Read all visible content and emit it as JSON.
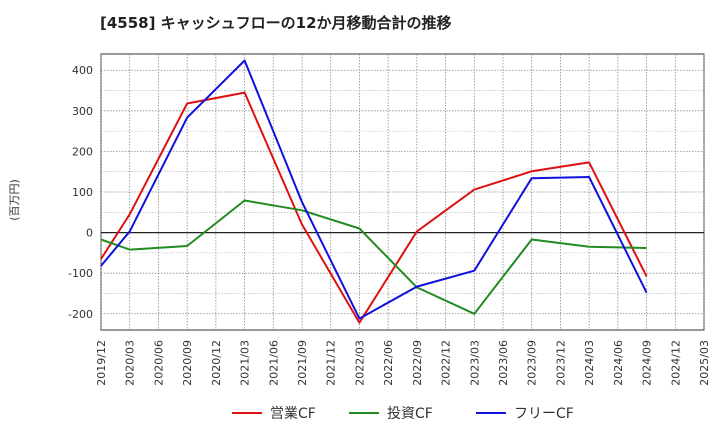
{
  "chart_data": {
    "type": "line",
    "title": "[4558]  キャッシュフローの12か月移動合計の推移",
    "ylabel": "(百万円)",
    "xlabel": "",
    "ylim": [
      -240,
      440
    ],
    "yticks": [
      -200,
      -100,
      0,
      100,
      200,
      300,
      400
    ],
    "xticks": [
      "2019/12",
      "2020/03",
      "2020/06",
      "2020/09",
      "2020/12",
      "2021/03",
      "2021/06",
      "2021/09",
      "2021/12",
      "2022/03",
      "2022/06",
      "2022/09",
      "2022/12",
      "2023/03",
      "2023/06",
      "2023/09",
      "2023/12",
      "2024/03",
      "2024/06",
      "2024/09",
      "2024/12",
      "2025/03"
    ],
    "grid": true,
    "legend_position": "bottom",
    "series": [
      {
        "name": "営業CF",
        "color": "#dd1111",
        "points": [
          [
            "2019/12",
            -65
          ],
          [
            "2020/03",
            45
          ],
          [
            "2020/09",
            318
          ],
          [
            "2021/03",
            345
          ],
          [
            "2021/09",
            20
          ],
          [
            "2022/03",
            -222
          ],
          [
            "2022/09",
            3
          ],
          [
            "2023/03",
            106
          ],
          [
            "2023/09",
            151
          ],
          [
            "2024/03",
            173
          ],
          [
            "2024/09",
            -108
          ]
        ]
      },
      {
        "name": "投資CF",
        "color": "#228b22",
        "points": [
          [
            "2019/12",
            -17
          ],
          [
            "2020/03",
            -42
          ],
          [
            "2020/09",
            -33
          ],
          [
            "2021/03",
            79
          ],
          [
            "2021/09",
            55
          ],
          [
            "2022/03",
            10
          ],
          [
            "2022/09",
            -135
          ],
          [
            "2023/03",
            -200
          ],
          [
            "2023/09",
            -17
          ],
          [
            "2024/03",
            -35
          ],
          [
            "2024/09",
            -38
          ]
        ]
      },
      {
        "name": "フリーCF",
        "color": "#1111dd",
        "points": [
          [
            "2019/12",
            -82
          ],
          [
            "2020/03",
            3
          ],
          [
            "2020/09",
            283
          ],
          [
            "2021/03",
            424
          ],
          [
            "2021/09",
            75
          ],
          [
            "2022/03",
            -212
          ],
          [
            "2022/09",
            -133
          ],
          [
            "2023/03",
            -94
          ],
          [
            "2023/09",
            134
          ],
          [
            "2024/03",
            137
          ],
          [
            "2024/09",
            -148
          ]
        ]
      }
    ]
  }
}
